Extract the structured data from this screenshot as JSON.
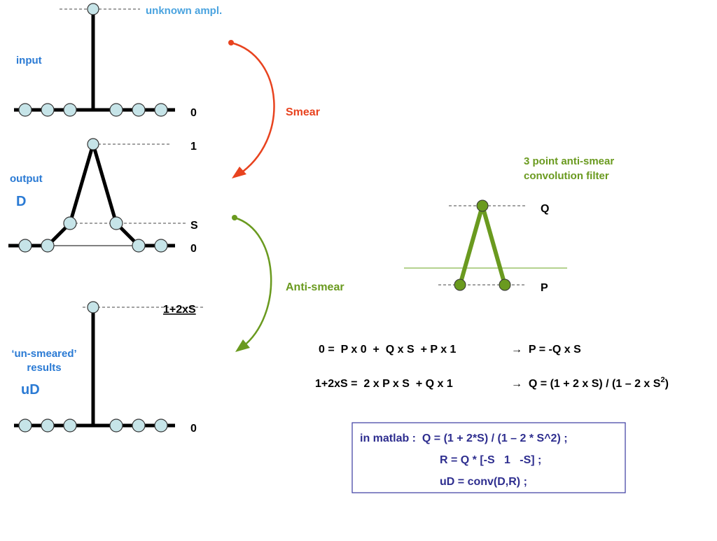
{
  "input_panel": {
    "annotation": "unknown ampl.",
    "label": "input",
    "zero": "0"
  },
  "output_panel": {
    "label": "output",
    "symbol": "D",
    "peak": "1",
    "side": "S",
    "zero": "0"
  },
  "result_panel": {
    "label_lines": [
      "‘un-smeared’",
      "results"
    ],
    "symbol": "uD",
    "peak": "1+2xS",
    "zero": "0"
  },
  "arrows": {
    "smear": "Smear",
    "anti_smear": "Anti-smear"
  },
  "filter": {
    "title_lines": [
      "3 point anti-smear",
      "convolution filter"
    ],
    "center": "Q",
    "side": "P"
  },
  "equations": [
    {
      "lhs": "0 =  P x 0  +  Q x S  + P x 1",
      "rhs": [
        "→  P = -Q x S"
      ]
    },
    {
      "lhs": "1+2xS =  2 x P x S  + Q x 1",
      "rhs": [
        "→  Q = (1 + 2 x S) / (1 – 2 x S",
        "2",
        ")"
      ]
    }
  ],
  "matlab": [
    "in matlab :  Q = (1 + 2*S) / (1 – 2 * S^2) ;",
    "R = Q * [-S   1   -S] ;",
    "uD = conv(D,R) ;"
  ]
}
